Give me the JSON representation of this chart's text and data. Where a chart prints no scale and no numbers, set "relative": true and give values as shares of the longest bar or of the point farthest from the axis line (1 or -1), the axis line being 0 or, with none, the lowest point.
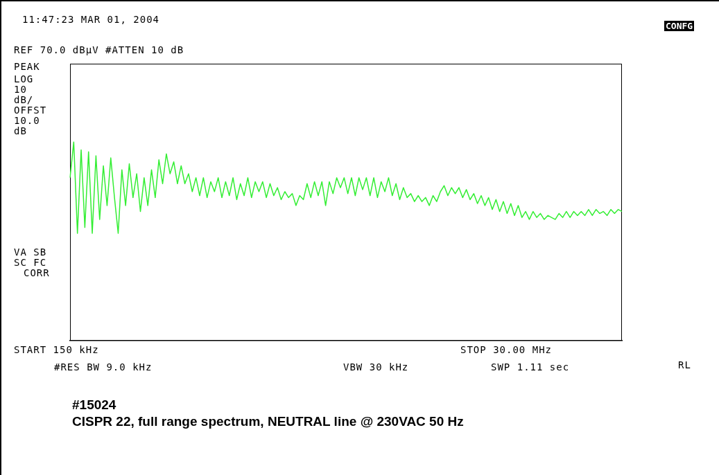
{
  "chart_data": {
    "type": "line",
    "title": "11:47:23 MAR 01, 2004",
    "annotations": [
      "REF 70.0 dBµV #ATTEN 10 dB",
      "PEAK",
      "LOG",
      "10",
      "dB/",
      "OFFST",
      "10.0",
      "dB",
      "VA SB",
      "SC FC",
      "CORR",
      "CONFG",
      "#RES BW 9.0 kHz",
      "VBW 30 kHz",
      "SWP 1.11 sec",
      "RL",
      "#15024",
      "CISPR 22, full range spectrum, NEUTRAL line @ 230VAC 50 Hz",
      "START 150 kHz",
      "STOP 30.00 MHz"
    ],
    "relative": true,
    "categories": [
      null,
      null,
      null,
      null,
      null,
      null,
      null,
      null,
      null,
      null,
      null,
      null,
      null,
      null,
      null,
      null,
      null,
      null,
      null,
      null,
      null,
      null,
      null,
      null,
      null,
      null,
      null,
      null,
      null,
      null,
      null,
      null,
      null,
      null,
      null,
      null,
      null,
      null,
      null,
      null,
      null,
      null,
      null,
      null,
      null,
      null,
      null,
      null,
      null,
      null,
      null,
      null,
      null,
      null,
      null,
      null,
      null,
      null,
      null,
      null,
      null,
      null,
      null,
      null,
      null,
      null,
      null,
      null,
      null,
      null,
      null,
      null,
      null,
      null,
      null,
      null,
      null,
      null,
      null,
      null,
      null,
      null,
      null,
      null,
      null,
      null,
      null,
      null,
      null,
      null,
      null,
      null,
      null,
      null,
      null,
      null,
      null,
      null,
      null,
      null,
      null,
      null,
      null,
      null,
      null,
      null,
      null,
      null,
      null,
      null,
      null,
      null,
      null,
      null,
      null,
      null,
      null,
      null,
      null,
      null,
      null,
      null,
      null,
      null,
      null,
      null,
      null,
      null,
      null,
      null,
      null,
      null,
      null,
      null,
      null,
      null,
      null,
      null,
      null,
      null,
      null,
      null,
      null,
      null,
      null,
      null,
      null,
      null,
      null,
      null
    ],
    "series": [
      {
        "color": "#33ee33",
        "values": [
          0.82,
          1,
          0.54,
          0.96,
          0.57,
          0.95,
          0.54,
          0.93,
          0.61,
          0.88,
          0.68,
          0.92,
          0.72,
          0.54,
          0.86,
          0.68,
          0.89,
          0.72,
          0.84,
          0.65,
          0.82,
          0.68,
          0.86,
          0.72,
          0.91,
          0.79,
          0.94,
          0.84,
          0.9,
          0.79,
          0.88,
          0.79,
          0.84,
          0.75,
          0.82,
          0.73,
          0.82,
          0.72,
          0.8,
          0.75,
          0.82,
          0.72,
          0.8,
          0.73,
          0.82,
          0.71,
          0.79,
          0.73,
          0.82,
          0.72,
          0.8,
          0.75,
          0.8,
          0.72,
          0.79,
          0.73,
          0.77,
          0.71,
          0.75,
          0.72,
          0.74,
          0.68,
          0.73,
          0.71,
          0.79,
          0.72,
          0.8,
          0.73,
          0.8,
          0.68,
          0.8,
          0.74,
          0.82,
          0.77,
          0.82,
          0.74,
          0.82,
          0.73,
          0.82,
          0.76,
          0.82,
          0.73,
          0.82,
          0.72,
          0.8,
          0.75,
          0.82,
          0.73,
          0.79,
          0.71,
          0.77,
          0.72,
          0.74,
          0.7,
          0.73,
          0.7,
          0.72,
          0.68,
          0.73,
          0.7,
          0.75,
          0.78,
          0.73,
          0.77,
          0.74,
          0.77,
          0.72,
          0.76,
          0.71,
          0.74,
          0.69,
          0.73,
          0.68,
          0.72,
          0.66,
          0.71,
          0.65,
          0.7,
          0.64,
          0.69,
          0.63,
          0.68,
          0.62,
          0.65,
          0.61,
          0.65,
          0.62,
          0.64,
          0.61,
          0.63,
          0.62,
          0.61,
          0.64,
          0.62,
          0.65,
          0.62,
          0.65,
          0.63,
          0.65,
          0.63,
          0.66,
          0.63,
          0.66,
          0.64,
          0.65,
          0.63,
          0.66,
          0.64,
          0.66,
          0.65
        ]
      }
    ],
    "legend": false,
    "marker": "none",
    "line_style": "solid"
  }
}
